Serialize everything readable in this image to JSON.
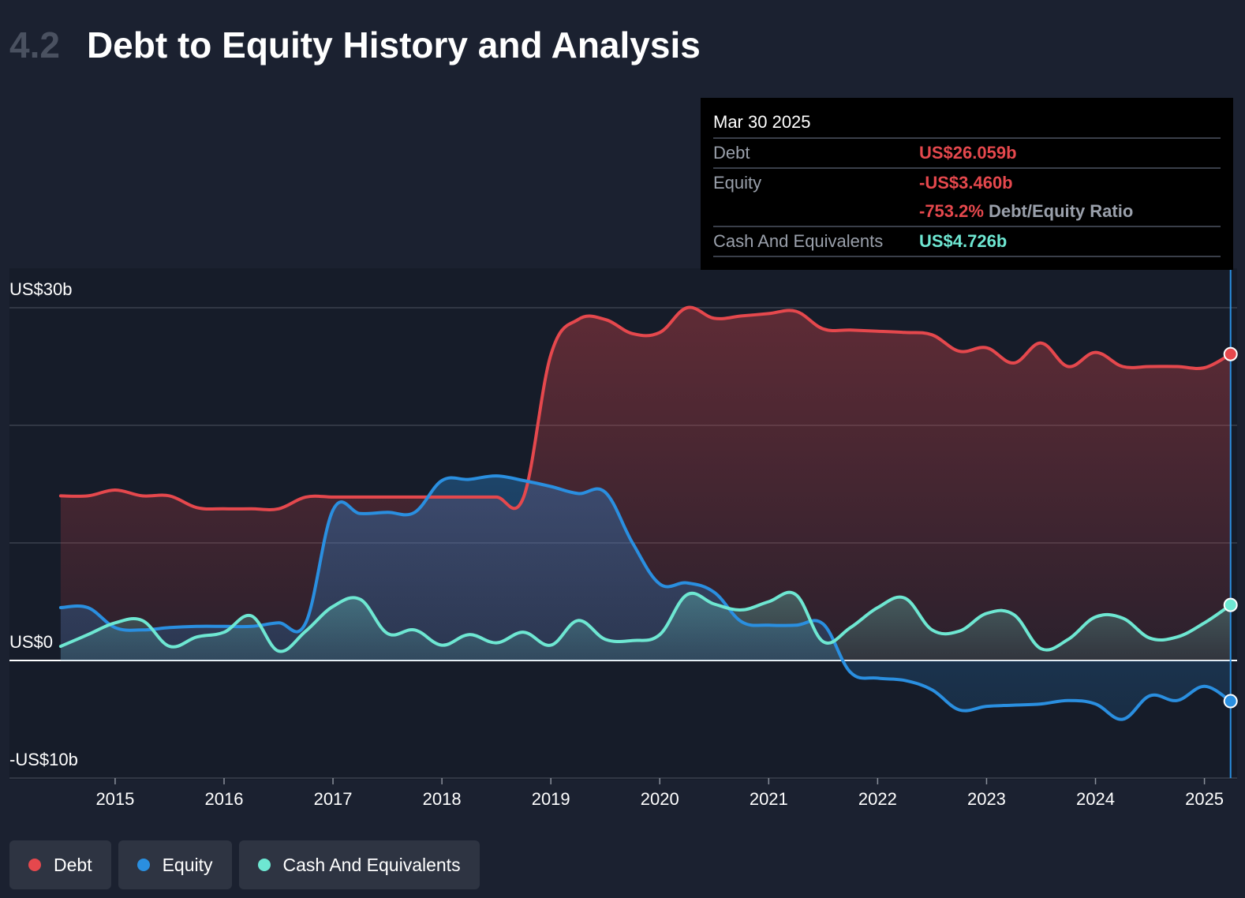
{
  "header": {
    "section_number": "4.2",
    "title": "Debt to Equity History and Analysis"
  },
  "colors": {
    "debt": "#e5484d",
    "equity": "#2a8fe0",
    "cash": "#6ee7d2",
    "background": "#1b2130"
  },
  "tooltip": {
    "date": "Mar 30 2025",
    "rows": [
      {
        "label": "Debt",
        "value": "US$26.059b",
        "color": "#e5484d"
      },
      {
        "label": "Equity",
        "value": "-US$3.460b",
        "color": "#e5484d"
      }
    ],
    "ratio_value": "-753.2%",
    "ratio_label": "Debt/Equity Ratio",
    "cash": {
      "label": "Cash And Equivalents",
      "value": "US$4.726b",
      "color": "#6ee7d2"
    }
  },
  "legend": [
    {
      "label": "Debt",
      "color": "#e5484d"
    },
    {
      "label": "Equity",
      "color": "#2a8fe0"
    },
    {
      "label": "Cash And Equivalents",
      "color": "#6ee7d2"
    }
  ],
  "chart_data": {
    "type": "area",
    "y_unit": "US$ billions",
    "ylim": [
      -10,
      30
    ],
    "y_ticks": [
      -10,
      0,
      10,
      20,
      30
    ],
    "y_tick_labels": [
      {
        "value": 30,
        "label": "US$30b"
      },
      {
        "value": 0,
        "label": "US$0"
      },
      {
        "value": -10,
        "label": "-US$10b"
      }
    ],
    "x_ticks": [
      2015,
      2016,
      2017,
      2018,
      2019,
      2020,
      2021,
      2022,
      2023,
      2024,
      2025
    ],
    "xlim": [
      2014.03,
      2025.3
    ],
    "x": [
      2014.5,
      2014.75,
      2015.0,
      2015.25,
      2015.5,
      2015.75,
      2016.0,
      2016.25,
      2016.5,
      2016.75,
      2017.0,
      2017.25,
      2017.5,
      2017.75,
      2018.0,
      2018.25,
      2018.5,
      2018.75,
      2019.0,
      2019.25,
      2019.5,
      2019.75,
      2020.0,
      2020.25,
      2020.5,
      2020.75,
      2021.0,
      2021.25,
      2021.5,
      2021.75,
      2022.0,
      2022.25,
      2022.5,
      2022.75,
      2023.0,
      2023.25,
      2023.5,
      2023.75,
      2024.0,
      2024.25,
      2024.5,
      2024.75,
      2025.0,
      2025.24
    ],
    "series": [
      {
        "name": "Debt",
        "color": "#e5484d",
        "values": [
          14.0,
          14.0,
          14.5,
          14.0,
          14.0,
          13.0,
          12.9,
          12.9,
          12.9,
          13.9,
          13.9,
          13.9,
          13.9,
          13.9,
          13.9,
          13.9,
          13.9,
          13.9,
          26.0,
          29.0,
          29.0,
          27.8,
          27.9,
          30.0,
          29.1,
          29.3,
          29.5,
          29.7,
          28.2,
          28.1,
          28.0,
          27.9,
          27.7,
          26.3,
          26.6,
          25.3,
          27.0,
          25.0,
          26.2,
          25.0,
          25.0,
          25.0,
          24.9,
          26.06
        ]
      },
      {
        "name": "Equity",
        "color": "#2a8fe0",
        "values": [
          4.5,
          4.5,
          2.8,
          2.6,
          2.8,
          2.9,
          2.9,
          2.9,
          3.2,
          3.2,
          12.8,
          12.5,
          12.6,
          12.6,
          15.3,
          15.4,
          15.7,
          15.3,
          14.8,
          14.2,
          14.3,
          10.0,
          6.5,
          6.6,
          5.8,
          3.3,
          3.0,
          3.0,
          3.1,
          -1.0,
          -1.5,
          -1.7,
          -2.5,
          -4.2,
          -3.9,
          -3.8,
          -3.7,
          -3.4,
          -3.7,
          -5.0,
          -3.0,
          -3.4,
          -2.2,
          -3.46
        ]
      },
      {
        "name": "Cash And Equivalents",
        "color": "#6ee7d2",
        "values": [
          1.2,
          2.2,
          3.2,
          3.4,
          1.2,
          2.0,
          2.4,
          3.8,
          0.8,
          2.5,
          4.6,
          5.2,
          2.3,
          2.6,
          1.3,
          2.2,
          1.5,
          2.4,
          1.3,
          3.4,
          1.8,
          1.7,
          2.2,
          5.6,
          4.8,
          4.3,
          5.0,
          5.6,
          1.6,
          2.8,
          4.5,
          5.3,
          2.6,
          2.5,
          4.0,
          3.9,
          1.0,
          1.8,
          3.7,
          3.6,
          1.9,
          2.0,
          3.2,
          4.726
        ]
      }
    ],
    "hover_x": 2025.24,
    "grid": "horizontal",
    "legend_position": "bottom-left"
  }
}
